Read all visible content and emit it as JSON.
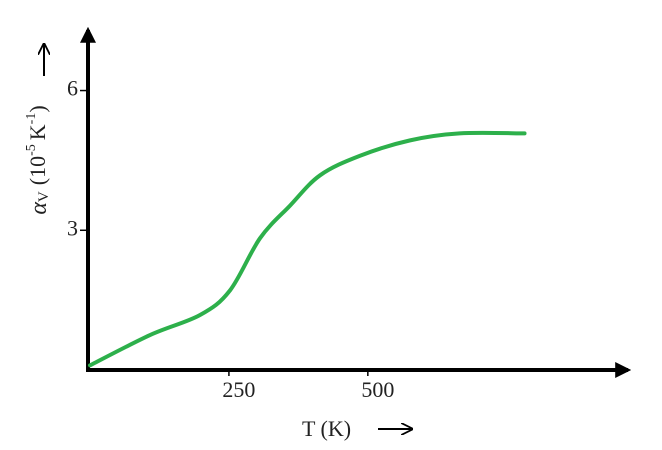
{
  "chart_data": {
    "type": "line",
    "y_label": {
      "symbol": "α",
      "subscript": "V",
      "unit_open": "(10",
      "unit_exp": "-5",
      "unit": "K",
      "unit2_exp": "-1",
      "unit_close": ")"
    },
    "x_label": "T  (K)",
    "x": [
      0,
      108,
      198,
      252,
      306,
      360,
      414,
      486,
      576,
      665,
      782
    ],
    "values": [
      0.1,
      0.75,
      1.18,
      1.71,
      2.83,
      3.53,
      4.18,
      4.6,
      4.93,
      5.08,
      5.08
    ],
    "color": "#2db04b",
    "xlim": [
      0,
      970
    ],
    "xticks": [
      250,
      500
    ],
    "ylim": [
      0,
      7.3
    ],
    "yticks": [
      3,
      6
    ]
  }
}
